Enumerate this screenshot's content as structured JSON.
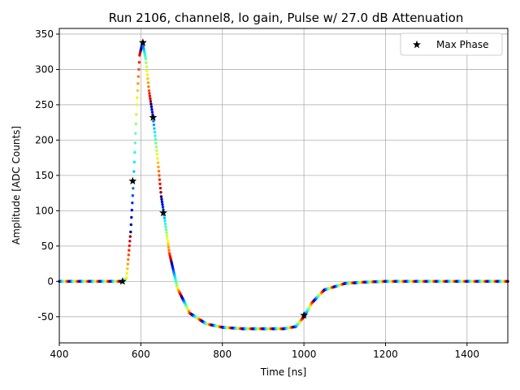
{
  "chart_data": {
    "type": "scatter",
    "title": "Run 2106, channel8, lo gain, Pulse w/ 27.0 dB Attenuation",
    "xlabel": "Time [ns]",
    "ylabel": "Amplitude [ADC Counts]",
    "xlim": [
      400,
      1500
    ],
    "ylim": [
      -87,
      358
    ],
    "xticks": [
      400,
      600,
      800,
      1000,
      1200,
      1400
    ],
    "yticks": [
      -50,
      0,
      50,
      100,
      150,
      200,
      250,
      300,
      350
    ],
    "grid": true,
    "legend": {
      "position": "top-right",
      "entries": [
        "Max Phase"
      ]
    },
    "pulse_waveform": {
      "color_map": "jet",
      "x": [
        400,
        555,
        565,
        575,
        582,
        590,
        597,
        604,
        612,
        620,
        630,
        640,
        650,
        656,
        670,
        690,
        720,
        760,
        800,
        850,
        900,
        950,
        980,
        1000,
        1020,
        1050,
        1100,
        1150,
        1200,
        1300,
        1500
      ],
      "y": [
        0,
        0,
        5,
        70,
        142,
        250,
        320,
        338,
        315,
        270,
        232,
        180,
        120,
        98,
        40,
        -10,
        -45,
        -60,
        -65,
        -67,
        -67,
        -67,
        -64,
        -50,
        -30,
        -12,
        -3,
        -1,
        0,
        0,
        0
      ]
    },
    "series": [
      {
        "name": "Max Phase",
        "marker": "star",
        "x": [
          555,
          580,
          605,
          630,
          655,
          1000
        ],
        "y": [
          0,
          142,
          338,
          232,
          97,
          -48
        ]
      }
    ]
  }
}
